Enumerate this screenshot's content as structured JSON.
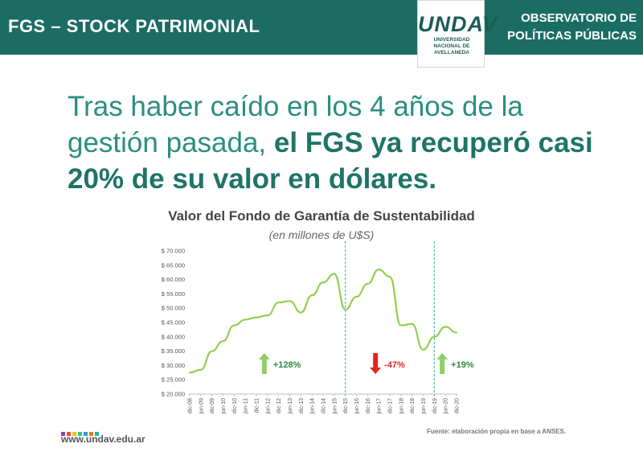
{
  "header": {
    "left_title": "FGS – STOCK PATRIMONIAL",
    "logo_text": "UNDAV",
    "logo_subtitle_lines": [
      "UNIVERSIDAD",
      "NACIONAL DE",
      "AVELLANEDA"
    ],
    "right_title_lines": [
      "OBSERVATORIO DE",
      "POLÍTICAS PÚBLICAS"
    ],
    "bar_color": "#1b6d64"
  },
  "headline": {
    "part1": "Tras haber caído en los 4 años de la gestión pasada, ",
    "part2": "el FGS ya recuperó casi 20% de su valor en dólares."
  },
  "chart_data": {
    "type": "line",
    "title": "Valor del Fondo de Garantía de Sustentabilidad",
    "subtitle": "(en millones de U$S)",
    "ylim": [
      20000,
      70000
    ],
    "yticks": [
      "$ 20.000",
      "$ 25.000",
      "$ 30.000",
      "$ 35.000",
      "$ 40.000",
      "$ 45.000",
      "$ 50.000",
      "$ 55.000",
      "$ 60.000",
      "$ 65.000",
      "$ 70.000"
    ],
    "ytick_values": [
      20000,
      25000,
      30000,
      35000,
      40000,
      45000,
      50000,
      55000,
      60000,
      65000,
      70000
    ],
    "categories": [
      "dic-08",
      "jun-09",
      "dic-09",
      "jun-10",
      "dic-10",
      "jun-11",
      "dic-11",
      "jun-12",
      "dic-12",
      "jun-13",
      "dic-13",
      "jun-14",
      "dic-14",
      "jun-15",
      "dic-15",
      "jun-16",
      "dic-16",
      "jun-17",
      "dic-17",
      "jun-18",
      "dic-18",
      "jun-19",
      "dic-19",
      "jun-20",
      "dic-20"
    ],
    "series": [
      {
        "color": "#92d050",
        "values": [
          27500,
          28500,
          35000,
          38500,
          44000,
          46000,
          46800,
          47500,
          52000,
          52500,
          48500,
          54500,
          59000,
          62000,
          49500,
          54000,
          58500,
          63500,
          61000,
          44000,
          44500,
          35500,
          40000,
          43500,
          41500
        ]
      }
    ],
    "markers": [
      {
        "after_category": "dic-15",
        "style": "dashed",
        "color": "#2fb59c"
      },
      {
        "after_category": "dic-19",
        "style": "dashed",
        "color": "#2fb59c"
      }
    ],
    "annotations": [
      {
        "text": "+128%",
        "direction": "up",
        "color": "#2e8b3e",
        "arrow_color": "#8fcf6a",
        "at_category": "jun-12"
      },
      {
        "text": "-47%",
        "direction": "down",
        "color": "#e0261e",
        "arrow_color": "#e0261e",
        "at_category": "jun-17"
      },
      {
        "text": "+19%",
        "direction": "up",
        "color": "#2e8b3e",
        "arrow_color": "#8fcf6a",
        "at_category": "jun-20"
      }
    ],
    "grid": false
  },
  "footer": {
    "url": "www.undav.edu.ar",
    "source": "Fuente: elaboración propia en base a ANSES.",
    "dot_colors": [
      "#8e44ad",
      "#e74c3c",
      "#f1c40f",
      "#2ecc71",
      "#3498db",
      "#e67e22",
      "#1abc9c"
    ]
  }
}
